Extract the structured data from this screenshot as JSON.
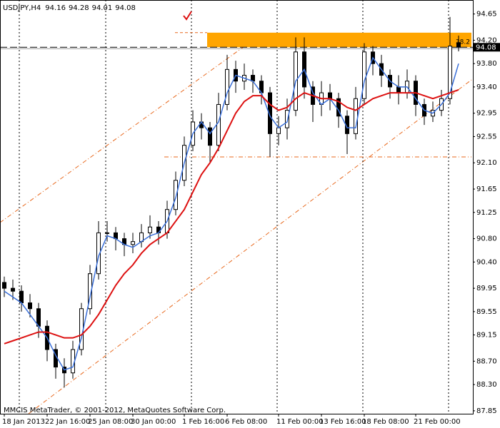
{
  "chart_data": {
    "type": "candlestick",
    "title": "USDJPY,H4",
    "footer": "MMCIS MetaTrader, © 2001-2012, MetaQuotes Software Corp.",
    "categories": [
      "18 Jan 2013",
      null,
      null,
      null,
      null,
      "22 Jan 16:00",
      null,
      null,
      null,
      null,
      "25 Jan 08:00",
      null,
      null,
      null,
      null,
      "30 Jan 00:00",
      null,
      null,
      null,
      null,
      null,
      "1 Feb 16:00",
      null,
      null,
      null,
      null,
      "6 Feb 08:00",
      null,
      null,
      null,
      null,
      null,
      "11 Feb 00:00",
      null,
      null,
      null,
      null,
      "13 Feb 16:00",
      null,
      null,
      null,
      null,
      "18 Feb 08:00",
      null,
      null,
      null,
      null,
      null,
      "21 Feb 00:00",
      null,
      null,
      null,
      null,
      null
    ],
    "open": [
      90.05,
      89.95,
      89.9,
      89.7,
      89.6,
      89.3,
      88.9,
      88.6,
      88.5,
      88.9,
      89.6,
      90.2,
      90.9,
      90.9,
      90.8,
      90.7,
      90.75,
      90.9,
      91.0,
      90.9,
      91.3,
      91.8,
      92.4,
      92.8,
      92.7,
      92.4,
      93.1,
      93.7,
      93.5,
      93.6,
      93.5,
      93.3,
      92.6,
      92.7,
      93.0,
      94.0,
      93.4,
      93.1,
      93.3,
      93.2,
      92.9,
      92.6,
      93.2,
      94.0,
      93.8,
      93.6,
      93.4,
      93.3,
      93.5,
      93.1,
      92.9,
      93.0,
      93.2,
      94.16
    ],
    "high": [
      90.15,
      90.1,
      90.0,
      89.85,
      89.7,
      89.4,
      89.0,
      88.75,
      89.05,
      89.7,
      90.35,
      91.1,
      91.1,
      91.0,
      90.9,
      90.9,
      91.05,
      91.2,
      91.1,
      91.45,
      91.95,
      92.55,
      93.0,
      92.95,
      92.8,
      93.3,
      93.95,
      93.85,
      93.8,
      93.7,
      93.6,
      93.4,
      92.9,
      93.2,
      94.25,
      94.25,
      93.5,
      93.5,
      93.45,
      93.3,
      93.0,
      93.4,
      94.15,
      94.1,
      93.95,
      93.7,
      93.6,
      93.7,
      93.6,
      93.2,
      93.15,
      93.35,
      94.6,
      94.28
    ],
    "low": [
      89.8,
      89.75,
      89.55,
      89.45,
      89.1,
      88.7,
      88.4,
      88.25,
      88.4,
      88.8,
      89.5,
      90.1,
      90.75,
      90.6,
      90.5,
      90.55,
      90.65,
      90.8,
      90.7,
      90.8,
      91.2,
      91.7,
      92.3,
      92.5,
      92.1,
      92.3,
      93.0,
      93.3,
      93.35,
      93.3,
      93.1,
      92.2,
      92.4,
      92.5,
      92.9,
      93.2,
      92.8,
      92.9,
      93.0,
      92.7,
      92.25,
      92.5,
      93.1,
      93.6,
      93.4,
      93.2,
      93.1,
      93.2,
      92.9,
      92.75,
      92.8,
      92.9,
      93.1,
      94.01
    ],
    "close": [
      89.95,
      89.9,
      89.7,
      89.6,
      89.3,
      88.9,
      88.6,
      88.5,
      88.9,
      89.6,
      90.2,
      90.9,
      90.9,
      90.8,
      90.7,
      90.75,
      90.9,
      91.0,
      90.9,
      91.3,
      91.8,
      92.4,
      92.8,
      92.7,
      92.4,
      93.1,
      93.7,
      93.5,
      93.6,
      93.5,
      93.3,
      92.6,
      92.7,
      93.0,
      94.0,
      93.4,
      93.1,
      93.3,
      93.2,
      92.9,
      92.6,
      93.2,
      94.0,
      93.8,
      93.6,
      93.4,
      93.3,
      93.5,
      93.1,
      92.9,
      93.0,
      93.2,
      94.1,
      94.08
    ],
    "lines": [
      {
        "color": "#3a6fd8",
        "values": [
          89.9,
          89.8,
          89.7,
          89.5,
          89.3,
          89.1,
          88.8,
          88.55,
          88.6,
          89.1,
          89.8,
          90.5,
          90.85,
          90.8,
          90.7,
          90.65,
          90.75,
          90.85,
          90.9,
          91.1,
          91.5,
          92.1,
          92.6,
          92.8,
          92.6,
          92.8,
          93.3,
          93.6,
          93.55,
          93.5,
          93.3,
          92.9,
          92.7,
          92.8,
          93.5,
          93.7,
          93.3,
          93.1,
          93.2,
          93.0,
          92.7,
          92.7,
          93.5,
          93.9,
          93.7,
          93.5,
          93.4,
          93.4,
          93.2,
          93.0,
          92.95,
          93.1,
          93.3,
          93.8
        ]
      },
      {
        "color": "#dd1111",
        "values": [
          89.0,
          89.05,
          89.1,
          89.15,
          89.2,
          89.2,
          89.15,
          89.1,
          89.1,
          89.15,
          89.3,
          89.5,
          89.75,
          90.0,
          90.2,
          90.35,
          90.55,
          90.7,
          90.8,
          90.9,
          91.1,
          91.3,
          91.6,
          91.9,
          92.1,
          92.35,
          92.65,
          92.95,
          93.15,
          93.25,
          93.25,
          93.1,
          93.0,
          93.05,
          93.2,
          93.3,
          93.25,
          93.2,
          93.2,
          93.15,
          93.05,
          93.0,
          93.1,
          93.2,
          93.25,
          93.3,
          93.3,
          93.3,
          93.3,
          93.25,
          93.2,
          93.25,
          93.3,
          93.35
        ]
      }
    ],
    "zone": {
      "range": [
        94.08,
        94.33
      ],
      "color": "#ffa500",
      "label": "38.2"
    },
    "support": 92.2,
    "ylim": [
      87.8,
      94.89
    ],
    "yticks": [
      94.65,
      {
        "value": 94.2,
        "label": "94.20"
      },
      {
        "value": 93.8,
        "label": "93.80"
      },
      {
        "value": 93.4,
        "label": "93.40"
      },
      92.95,
      92.55,
      {
        "value": 92.1,
        "label": "92.10"
      },
      91.65,
      91.25,
      {
        "value": 90.8,
        "label": "90.80"
      },
      {
        "value": 90.4,
        "label": "90.40"
      },
      89.95,
      89.55,
      89.15,
      {
        "value": 88.7,
        "label": "88.70"
      },
      {
        "value": 88.3,
        "label": "88.30"
      },
      87.85
    ]
  }
}
